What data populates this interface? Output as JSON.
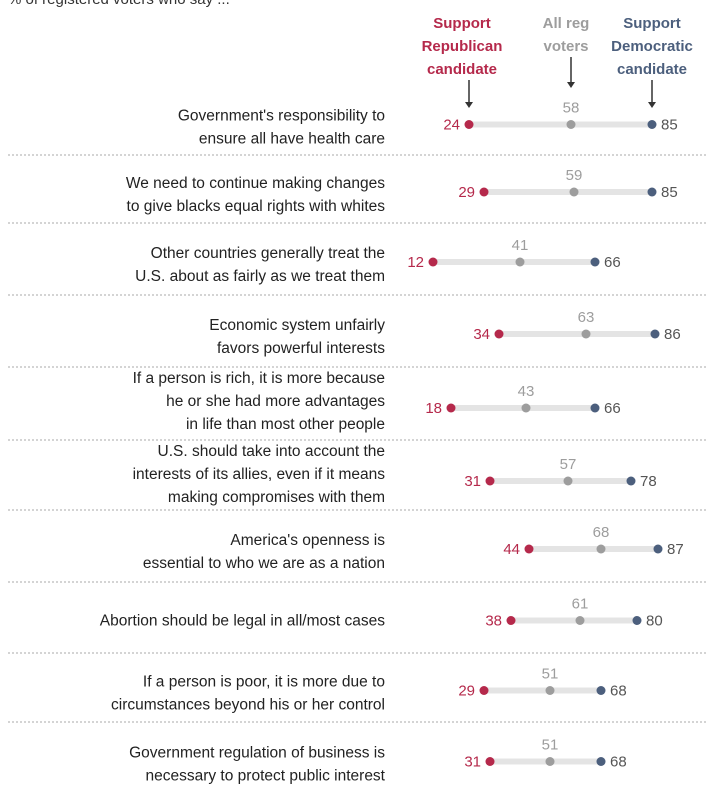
{
  "header": {
    "top_text": "% of registered voters who say ...",
    "rep": [
      "Support",
      "Republican",
      "candidate"
    ],
    "all": [
      "All reg",
      "voters"
    ],
    "dem": [
      "Support",
      "Democratic",
      "candidate"
    ]
  },
  "colors": {
    "rep": "#b5294b",
    "all": "#9d9d9d",
    "dem": "#4c5f7d",
    "bar": "#e4e4e4",
    "separator": "#a8a8a8"
  },
  "chart_data": {
    "type": "dot",
    "series": [
      {
        "name": "Support Republican candidate",
        "values": [
          24,
          29,
          12,
          34,
          18,
          31,
          44,
          38,
          29,
          31
        ]
      },
      {
        "name": "All reg voters",
        "values": [
          58,
          59,
          41,
          63,
          43,
          57,
          68,
          61,
          51,
          51
        ]
      },
      {
        "name": "Support Democratic candidate",
        "values": [
          85,
          85,
          66,
          86,
          66,
          78,
          87,
          80,
          68,
          68
        ]
      }
    ],
    "rows": [
      {
        "label": [
          "Government's responsibility to",
          "ensure all have health care"
        ],
        "rep": 24,
        "all": 58,
        "dem": 85
      },
      {
        "label": [
          "We need to continue making changes",
          "to give blacks equal rights with whites"
        ],
        "rep": 29,
        "all": 59,
        "dem": 85
      },
      {
        "label": [
          "Other countries generally treat the",
          "U.S. about as fairly as we treat them"
        ],
        "rep": 12,
        "all": 41,
        "dem": 66
      },
      {
        "label": [
          "Economic system unfairly",
          "favors powerful interests"
        ],
        "rep": 34,
        "all": 63,
        "dem": 86
      },
      {
        "label": [
          "If a person is rich, it is more because",
          "he or she had more advantages",
          "in life than most other people"
        ],
        "rep": 18,
        "all": 43,
        "dem": 66
      },
      {
        "label": [
          "U.S. should take into account the",
          "interests of its allies, even if it means",
          "making compromises with them"
        ],
        "rep": 31,
        "all": 57,
        "dem": 78
      },
      {
        "label": [
          "America's openness is",
          "essential to who we are as a nation"
        ],
        "rep": 44,
        "all": 68,
        "dem": 87
      },
      {
        "label": [
          "Abortion should be legal in all/most cases"
        ],
        "rep": 38,
        "all": 61,
        "dem": 80
      },
      {
        "label": [
          "If a person is poor, it is more due to",
          "circumstances beyond his or her control"
        ],
        "rep": 29,
        "all": 51,
        "dem": 68
      },
      {
        "label": [
          "Government regulation of business is",
          "necessary to protect public interest"
        ],
        "rep": 31,
        "all": 51,
        "dem": 68
      }
    ]
  }
}
